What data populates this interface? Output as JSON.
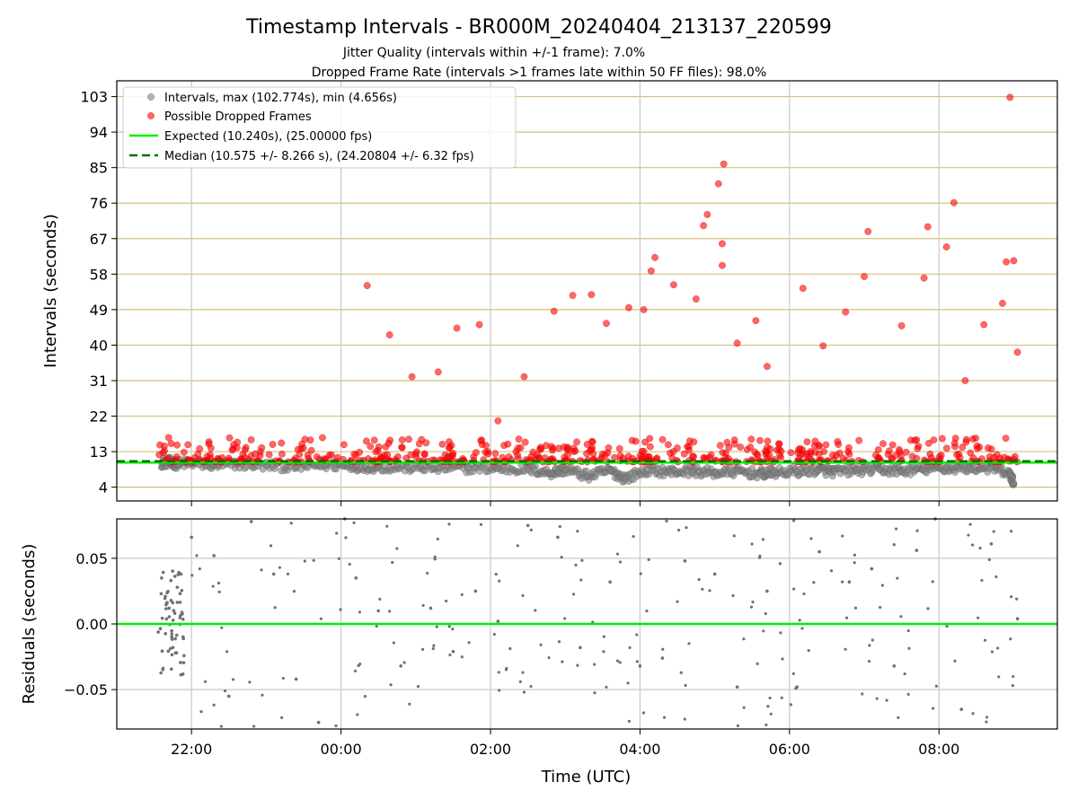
{
  "chart_data": [
    {
      "type": "scatter",
      "title": "Timestamp Intervals - BR000M_20240404_213137_220599",
      "subtitle_lines": [
        "Jitter Quality (intervals within +/-1 frame): 7.0%",
        "Dropped Frame Rate (intervals >1 frames late within 50 FF files): 98.0%"
      ],
      "xlabel": "",
      "ylabel": "Intervals (seconds)",
      "ylim": [
        0.5,
        107
      ],
      "yticks": [
        4,
        13,
        22,
        31,
        40,
        49,
        58,
        67,
        76,
        85,
        94,
        103
      ],
      "xlim": [
        "21:00",
        "09:35"
      ],
      "grid": "x and y",
      "legend_position": "top-left",
      "legend": [
        {
          "label": "Intervals, max (102.774s), min (4.656s)",
          "marker": "circle",
          "color": "#808080"
        },
        {
          "label": "Possible Dropped Frames",
          "marker": "circle",
          "color": "#ff0000"
        },
        {
          "label": "Expected (10.240s), (25.00000 fps)",
          "line": "solid",
          "color": "#00ee00"
        },
        {
          "label": "Median (10.575 +/- 8.266 s), (24.20804 +/- 6.32 fps)",
          "line": "dashed",
          "color": "#007000"
        }
      ],
      "reference_lines": {
        "expected": 10.24,
        "median": 10.575
      },
      "series": [
        {
          "name": "Intervals, max (102.774s), min (4.656s)",
          "color": "#808080",
          "points_hours_utc": [
            [
              21.6,
              10.2
            ],
            [
              21.7,
              10.4
            ],
            [
              21.8,
              9.9
            ],
            [
              22.0,
              10.1
            ],
            [
              22.3,
              9.6
            ],
            [
              22.6,
              9.8
            ],
            [
              23.0,
              9.5
            ],
            [
              23.4,
              9.2
            ],
            [
              23.8,
              9.6
            ],
            [
              0.2,
              9.3
            ],
            [
              0.5,
              9.1
            ],
            [
              0.9,
              9.0
            ],
            [
              1.3,
              8.8
            ],
            [
              1.7,
              8.9
            ],
            [
              2.1,
              8.7
            ],
            [
              2.5,
              8.6
            ],
            [
              2.8,
              7.6
            ],
            [
              3.0,
              8.5
            ],
            [
              3.3,
              6.8
            ],
            [
              3.6,
              8.2
            ],
            [
              3.8,
              6.2
            ],
            [
              4.1,
              8.4
            ],
            [
              4.4,
              7.9
            ],
            [
              4.7,
              8.1
            ],
            [
              5.0,
              7.6
            ],
            [
              5.3,
              8.0
            ],
            [
              5.6,
              7.4
            ],
            [
              5.8,
              7.7
            ],
            [
              6.1,
              8.0
            ],
            [
              6.4,
              8.4
            ],
            [
              6.6,
              7.9
            ],
            [
              6.9,
              8.3
            ],
            [
              7.2,
              8.5
            ],
            [
              7.5,
              8.1
            ],
            [
              7.8,
              8.6
            ],
            [
              8.1,
              8.8
            ],
            [
              8.4,
              8.9
            ],
            [
              8.7,
              9.0
            ],
            [
              8.95,
              7.2
            ],
            [
              9.0,
              5.0
            ]
          ]
        },
        {
          "name": "Possible Dropped Frames",
          "color": "#ff0000",
          "points_hours_utc": [
            [
              0.35,
              55.1
            ],
            [
              0.65,
              42.6
            ],
            [
              0.95,
              32.0
            ],
            [
              1.3,
              33.2
            ],
            [
              1.55,
              44.3
            ],
            [
              1.85,
              45.2
            ],
            [
              2.1,
              20.8
            ],
            [
              2.45,
              32.0
            ],
            [
              2.85,
              48.6
            ],
            [
              3.1,
              52.6
            ],
            [
              3.35,
              52.8
            ],
            [
              3.55,
              45.5
            ],
            [
              3.85,
              49.5
            ],
            [
              4.05,
              49.0
            ],
            [
              4.15,
              58.8
            ],
            [
              4.2,
              62.2
            ],
            [
              4.45,
              55.3
            ],
            [
              4.75,
              51.7
            ],
            [
              4.85,
              70.3
            ],
            [
              4.9,
              73.1
            ],
            [
              5.05,
              80.9
            ],
            [
              5.12,
              85.9
            ],
            [
              5.1,
              65.7
            ],
            [
              5.1,
              60.2
            ],
            [
              5.3,
              40.5
            ],
            [
              5.55,
              46.2
            ],
            [
              5.7,
              34.6
            ],
            [
              6.18,
              54.4
            ],
            [
              6.45,
              39.8
            ],
            [
              6.75,
              48.4
            ],
            [
              7.0,
              57.4
            ],
            [
              7.05,
              68.8
            ],
            [
              7.5,
              44.9
            ],
            [
              7.8,
              57.0
            ],
            [
              7.85,
              70.0
            ],
            [
              8.1,
              64.9
            ],
            [
              8.2,
              76.1
            ],
            [
              8.35,
              31.0
            ],
            [
              8.6,
              45.2
            ],
            [
              8.85,
              50.6
            ],
            [
              8.9,
              61.1
            ],
            [
              8.95,
              102.8
            ],
            [
              9.0,
              61.4
            ],
            [
              9.05,
              38.2
            ]
          ]
        }
      ]
    },
    {
      "type": "scatter",
      "title": "",
      "xlabel": "Time (UTC)",
      "ylabel": "Residuals (seconds)",
      "ylim": [
        -0.08,
        0.08
      ],
      "yticks": [
        "0.05",
        "0.00",
        "−0.05"
      ],
      "xticks": [
        "22:00",
        "00:00",
        "02:00",
        "04:00",
        "06:00",
        "08:00"
      ],
      "xlim": [
        "21:00",
        "09:35"
      ],
      "grid": "x and y",
      "reference_lines": {
        "zero": 0.0
      },
      "series": [
        {
          "name": "Residuals",
          "color": "#707070",
          "points_hours_utc": [
            [
              21.6,
              0.035
            ],
            [
              21.65,
              0.021
            ],
            [
              21.7,
              0.012
            ],
            [
              21.75,
              -0.018
            ],
            [
              21.8,
              -0.022
            ],
            [
              22.0,
              0.066
            ],
            [
              22.3,
              0.052
            ],
            [
              22.5,
              -0.055
            ],
            [
              22.8,
              0.078
            ],
            [
              23.1,
              0.038
            ],
            [
              23.4,
              -0.042
            ],
            [
              23.7,
              -0.075
            ],
            [
              0.05,
              0.08
            ],
            [
              0.2,
              0.035
            ],
            [
              0.5,
              0.01
            ],
            [
              0.8,
              -0.032
            ],
            [
              1.2,
              0.012
            ],
            [
              1.5,
              -0.021
            ],
            [
              1.8,
              0.025
            ],
            [
              2.1,
              0.002
            ],
            [
              2.5,
              0.075
            ],
            [
              2.9,
              0.066
            ],
            [
              3.2,
              -0.018
            ],
            [
              3.6,
              0.032
            ],
            [
              4.0,
              -0.032
            ],
            [
              4.3,
              -0.026
            ],
            [
              4.6,
              0.048
            ],
            [
              5.0,
              0.038
            ],
            [
              5.3,
              -0.048
            ],
            [
              5.7,
              0.025
            ],
            [
              6.1,
              -0.048
            ],
            [
              6.4,
              0.055
            ],
            [
              6.8,
              0.032
            ],
            [
              7.1,
              0.042
            ],
            [
              7.4,
              -0.032
            ],
            [
              7.7,
              0.056
            ],
            [
              7.95,
              0.08
            ],
            [
              8.3,
              -0.065
            ],
            [
              8.7,
              0.061
            ],
            [
              9.05,
              0.004
            ]
          ]
        }
      ]
    }
  ]
}
